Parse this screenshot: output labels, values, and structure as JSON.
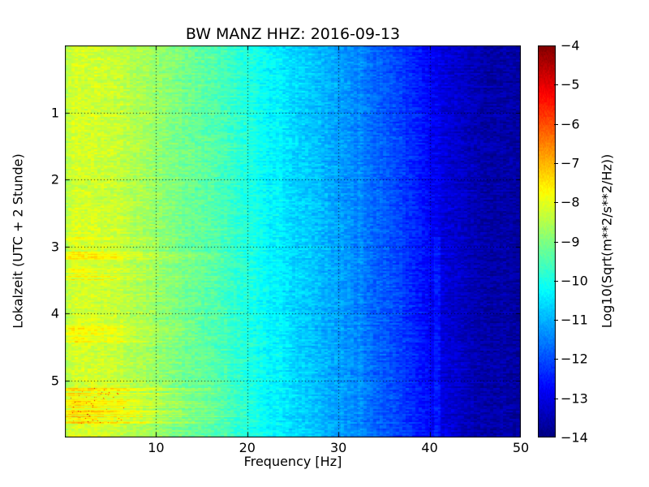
{
  "chart_data": {
    "type": "heatmap",
    "subtype": "seismic-spectrogram",
    "title": "BW MANZ HHZ: 2016-09-13",
    "xlabel": "Frequency [Hz]",
    "ylabel": "Lokalzeit (UTC + 2 Stunde)",
    "xlim": [
      0,
      50
    ],
    "ylim": [
      0,
      5.85
    ],
    "y_increases_downward": true,
    "grid": true,
    "grid_style": "dotted",
    "xticks": [
      10,
      20,
      30,
      40,
      50
    ],
    "yticks": [
      1,
      2,
      3,
      4,
      5
    ],
    "colormap": "jet",
    "colorbar": {
      "label": "Log10(Sqrt(m**2/s**2/Hz))",
      "vmin": -14,
      "vmax": -4,
      "ticks": [
        {
          "value": -4,
          "label": "−4"
        },
        {
          "value": -5,
          "label": "−5"
        },
        {
          "value": -6,
          "label": "−6"
        },
        {
          "value": -7,
          "label": "−7"
        },
        {
          "value": -8,
          "label": "−8"
        },
        {
          "value": -9,
          "label": "−9"
        },
        {
          "value": -10,
          "label": "−10"
        },
        {
          "value": -11,
          "label": "−11"
        },
        {
          "value": -12,
          "label": "−12"
        },
        {
          "value": -13,
          "label": "−13"
        },
        {
          "value": -14,
          "label": "−14"
        }
      ]
    },
    "spectrum_profile": [
      {
        "f": 0,
        "v": -8.5
      },
      {
        "f": 1,
        "v": -8.15
      },
      {
        "f": 5,
        "v": -8.25
      },
      {
        "f": 8,
        "v": -8.55
      },
      {
        "f": 12,
        "v": -9.0
      },
      {
        "f": 16,
        "v": -9.4
      },
      {
        "f": 18,
        "v": -9.65
      },
      {
        "f": 20,
        "v": -9.95
      },
      {
        "f": 23,
        "v": -10.4
      },
      {
        "f": 26,
        "v": -10.7
      },
      {
        "f": 30,
        "v": -11.15
      },
      {
        "f": 33,
        "v": -11.6
      },
      {
        "f": 36,
        "v": -12.0
      },
      {
        "f": 38,
        "v": -12.35
      },
      {
        "f": 40,
        "v": -12.75
      },
      {
        "f": 42,
        "v": -13.15
      },
      {
        "f": 44,
        "v": -13.4
      },
      {
        "f": 47,
        "v": -13.6
      },
      {
        "f": 50,
        "v": -13.65
      }
    ],
    "events": [
      {
        "t_start": 2.83,
        "t_end": 2.97,
        "f_max": 14,
        "amplitude": 0.4
      },
      {
        "t_start": 3.03,
        "t_end": 3.22,
        "f_max": 20,
        "amplitude": 0.8
      },
      {
        "t_start": 3.33,
        "t_end": 3.5,
        "f_max": 16,
        "amplitude": 0.55
      },
      {
        "t_start": 4.16,
        "t_end": 4.44,
        "f_max": 16,
        "amplitude": 0.55
      },
      {
        "t_start": 5.1,
        "t_end": 5.64,
        "f_max": 23,
        "amplitude": 1.0
      }
    ],
    "spectral_lines": [
      {
        "f": 23.5,
        "t_start": 0,
        "t_end": 5.85,
        "boost": 0.12
      },
      {
        "f": 32.4,
        "t_start": 0,
        "t_end": 5.85,
        "boost": 0.12
      },
      {
        "f": 40.8,
        "t_start": 2.85,
        "t_end": 5.85,
        "boost": 0.35
      }
    ],
    "noise_amplitude": 0.28,
    "colors": {
      "background": "#ffffff",
      "axis": "#000000",
      "text": "#000000",
      "cmap_low": "#000080",
      "cmap_high": "#800000"
    }
  }
}
